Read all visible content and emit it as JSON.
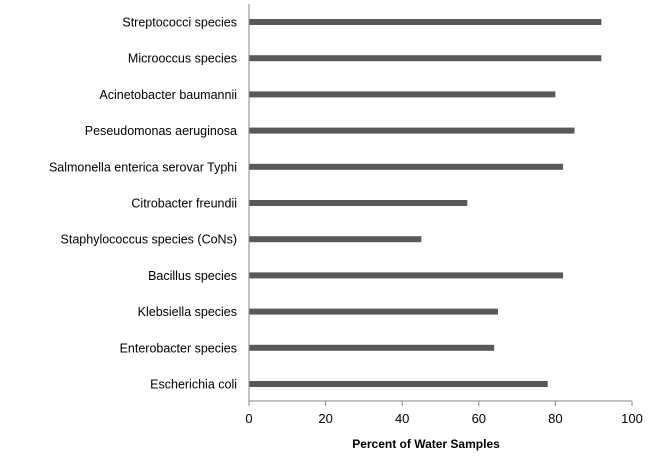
{
  "chart_data": {
    "type": "bar",
    "orientation": "horizontal",
    "categories": [
      "Streptococci species",
      "Microoccus species",
      "Acinetobacter baumannii",
      "Peseudomonas aeruginosa",
      "Salmonella enterica serovar Typhi",
      "Citrobacter freundii",
      "Staphylococcus species (CoNs)",
      "Bacillus species",
      "Klebsiella species",
      "Enterobacter species",
      "Escherichia coli"
    ],
    "values": [
      92,
      92,
      80,
      85,
      82,
      57,
      45,
      82,
      65,
      64,
      78
    ],
    "xlabel": "Percent of  Water Samples",
    "ylabel": "",
    "xlim": [
      0,
      100
    ],
    "xticks": [
      0,
      20,
      40,
      60,
      80,
      100
    ],
    "bar_color": "#595959",
    "grid": false,
    "legend": "none"
  }
}
